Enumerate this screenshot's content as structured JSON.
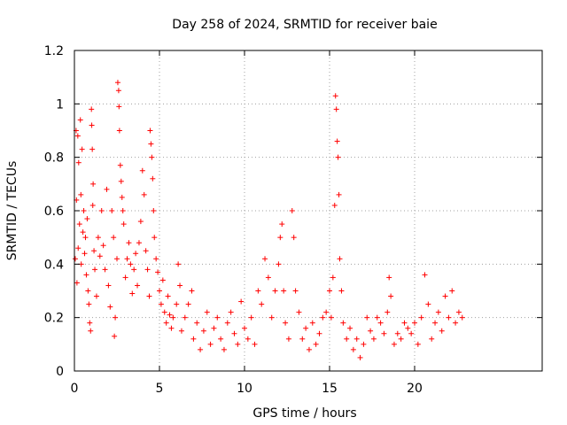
{
  "chart_data": {
    "type": "scatter",
    "title": "Day 258 of 2024, SRMTID for receiver baie",
    "xlabel": "GPS time / hours",
    "ylabel": "SRMTID / TECUs",
    "xlim": [
      0,
      27.5
    ],
    "ylim": [
      0,
      1.2
    ],
    "xticks": [
      0,
      5,
      10,
      15,
      20
    ],
    "yticks": [
      0,
      0.2,
      0.4,
      0.6,
      0.8,
      1,
      1.2
    ],
    "xtick_labels": [
      "0",
      "5",
      "10",
      "15",
      "20"
    ],
    "ytick_labels": [
      "0",
      "0.2",
      "0.4",
      "0.6",
      "0.8",
      "1",
      "1.2"
    ],
    "grid": true,
    "marker": "+",
    "color": "#ff0000",
    "series": [
      {
        "name": "SRMTID",
        "points": [
          [
            0.05,
            0.42
          ],
          [
            0.1,
            0.9
          ],
          [
            0.12,
            0.64
          ],
          [
            0.15,
            0.33
          ],
          [
            0.2,
            0.88
          ],
          [
            0.22,
            0.46
          ],
          [
            0.25,
            0.78
          ],
          [
            0.3,
            0.55
          ],
          [
            0.35,
            0.94
          ],
          [
            0.38,
            0.66
          ],
          [
            0.4,
            0.4
          ],
          [
            0.45,
            0.83
          ],
          [
            0.5,
            0.52
          ],
          [
            0.55,
            0.6
          ],
          [
            0.6,
            0.44
          ],
          [
            0.65,
            0.5
          ],
          [
            0.7,
            0.36
          ],
          [
            0.75,
            0.57
          ],
          [
            0.8,
            0.3
          ],
          [
            0.85,
            0.25
          ],
          [
            0.9,
            0.18
          ],
          [
            0.95,
            0.15
          ],
          [
            1.0,
            0.98
          ],
          [
            1.02,
            0.92
          ],
          [
            1.05,
            0.83
          ],
          [
            1.08,
            0.62
          ],
          [
            1.1,
            0.7
          ],
          [
            1.15,
            0.45
          ],
          [
            1.2,
            0.38
          ],
          [
            1.3,
            0.28
          ],
          [
            1.4,
            0.5
          ],
          [
            1.5,
            0.43
          ],
          [
            1.6,
            0.6
          ],
          [
            1.7,
            0.47
          ],
          [
            1.8,
            0.38
          ],
          [
            1.9,
            0.68
          ],
          [
            2.0,
            0.32
          ],
          [
            2.1,
            0.24
          ],
          [
            2.2,
            0.6
          ],
          [
            2.3,
            0.5
          ],
          [
            2.35,
            0.13
          ],
          [
            2.4,
            0.2
          ],
          [
            2.5,
            0.42
          ],
          [
            2.55,
            1.08
          ],
          [
            2.6,
            1.05
          ],
          [
            2.62,
            0.99
          ],
          [
            2.65,
            0.9
          ],
          [
            2.7,
            0.77
          ],
          [
            2.75,
            0.71
          ],
          [
            2.8,
            0.65
          ],
          [
            2.85,
            0.6
          ],
          [
            2.9,
            0.55
          ],
          [
            3.0,
            0.35
          ],
          [
            3.1,
            0.42
          ],
          [
            3.2,
            0.48
          ],
          [
            3.3,
            0.4
          ],
          [
            3.4,
            0.29
          ],
          [
            3.5,
            0.38
          ],
          [
            3.6,
            0.44
          ],
          [
            3.7,
            0.32
          ],
          [
            3.8,
            0.48
          ],
          [
            3.9,
            0.56
          ],
          [
            4.0,
            0.75
          ],
          [
            4.1,
            0.66
          ],
          [
            4.2,
            0.45
          ],
          [
            4.3,
            0.38
          ],
          [
            4.4,
            0.28
          ],
          [
            4.45,
            0.9
          ],
          [
            4.5,
            0.85
          ],
          [
            4.55,
            0.8
          ],
          [
            4.6,
            0.72
          ],
          [
            4.65,
            0.6
          ],
          [
            4.7,
            0.5
          ],
          [
            4.8,
            0.42
          ],
          [
            4.9,
            0.37
          ],
          [
            5.0,
            0.3
          ],
          [
            5.1,
            0.25
          ],
          [
            5.2,
            0.34
          ],
          [
            5.3,
            0.22
          ],
          [
            5.4,
            0.18
          ],
          [
            5.5,
            0.28
          ],
          [
            5.6,
            0.21
          ],
          [
            5.7,
            0.16
          ],
          [
            5.8,
            0.2
          ],
          [
            6.0,
            0.25
          ],
          [
            6.1,
            0.4
          ],
          [
            6.2,
            0.32
          ],
          [
            6.3,
            0.15
          ],
          [
            6.5,
            0.2
          ],
          [
            6.7,
            0.25
          ],
          [
            6.9,
            0.3
          ],
          [
            7.0,
            0.12
          ],
          [
            7.2,
            0.18
          ],
          [
            7.4,
            0.08
          ],
          [
            7.6,
            0.15
          ],
          [
            7.8,
            0.22
          ],
          [
            8.0,
            0.1
          ],
          [
            8.2,
            0.16
          ],
          [
            8.4,
            0.2
          ],
          [
            8.6,
            0.12
          ],
          [
            8.8,
            0.08
          ],
          [
            9.0,
            0.18
          ],
          [
            9.2,
            0.22
          ],
          [
            9.4,
            0.14
          ],
          [
            9.6,
            0.1
          ],
          [
            9.8,
            0.26
          ],
          [
            10.0,
            0.16
          ],
          [
            10.2,
            0.12
          ],
          [
            10.4,
            0.2
          ],
          [
            10.6,
            0.1
          ],
          [
            10.8,
            0.3
          ],
          [
            11.0,
            0.25
          ],
          [
            11.2,
            0.42
          ],
          [
            11.4,
            0.35
          ],
          [
            11.6,
            0.2
          ],
          [
            11.8,
            0.3
          ],
          [
            12.0,
            0.4
          ],
          [
            12.1,
            0.5
          ],
          [
            12.2,
            0.55
          ],
          [
            12.3,
            0.3
          ],
          [
            12.4,
            0.18
          ],
          [
            12.6,
            0.12
          ],
          [
            12.8,
            0.6
          ],
          [
            12.9,
            0.5
          ],
          [
            13.0,
            0.3
          ],
          [
            13.2,
            0.22
          ],
          [
            13.4,
            0.12
          ],
          [
            13.6,
            0.16
          ],
          [
            13.8,
            0.08
          ],
          [
            14.0,
            0.18
          ],
          [
            14.2,
            0.1
          ],
          [
            14.4,
            0.14
          ],
          [
            14.6,
            0.2
          ],
          [
            14.8,
            0.22
          ],
          [
            15.0,
            0.3
          ],
          [
            15.1,
            0.2
          ],
          [
            15.2,
            0.35
          ],
          [
            15.3,
            0.62
          ],
          [
            15.35,
            1.03
          ],
          [
            15.4,
            0.98
          ],
          [
            15.45,
            0.86
          ],
          [
            15.5,
            0.8
          ],
          [
            15.55,
            0.66
          ],
          [
            15.6,
            0.42
          ],
          [
            15.7,
            0.3
          ],
          [
            15.8,
            0.18
          ],
          [
            16.0,
            0.12
          ],
          [
            16.2,
            0.16
          ],
          [
            16.4,
            0.08
          ],
          [
            16.6,
            0.12
          ],
          [
            16.8,
            0.05
          ],
          [
            17.0,
            0.1
          ],
          [
            17.2,
            0.2
          ],
          [
            17.4,
            0.15
          ],
          [
            17.6,
            0.12
          ],
          [
            17.8,
            0.2
          ],
          [
            18.0,
            0.18
          ],
          [
            18.2,
            0.14
          ],
          [
            18.4,
            0.22
          ],
          [
            18.5,
            0.35
          ],
          [
            18.6,
            0.28
          ],
          [
            18.8,
            0.1
          ],
          [
            19.0,
            0.14
          ],
          [
            19.2,
            0.12
          ],
          [
            19.4,
            0.18
          ],
          [
            19.6,
            0.16
          ],
          [
            19.8,
            0.14
          ],
          [
            20.0,
            0.18
          ],
          [
            20.2,
            0.1
          ],
          [
            20.4,
            0.2
          ],
          [
            20.6,
            0.36
          ],
          [
            20.8,
            0.25
          ],
          [
            21.0,
            0.12
          ],
          [
            21.2,
            0.18
          ],
          [
            21.4,
            0.22
          ],
          [
            21.6,
            0.15
          ],
          [
            21.8,
            0.28
          ],
          [
            22.0,
            0.2
          ],
          [
            22.2,
            0.3
          ],
          [
            22.4,
            0.18
          ],
          [
            22.6,
            0.22
          ],
          [
            22.8,
            0.2
          ]
        ]
      }
    ]
  }
}
